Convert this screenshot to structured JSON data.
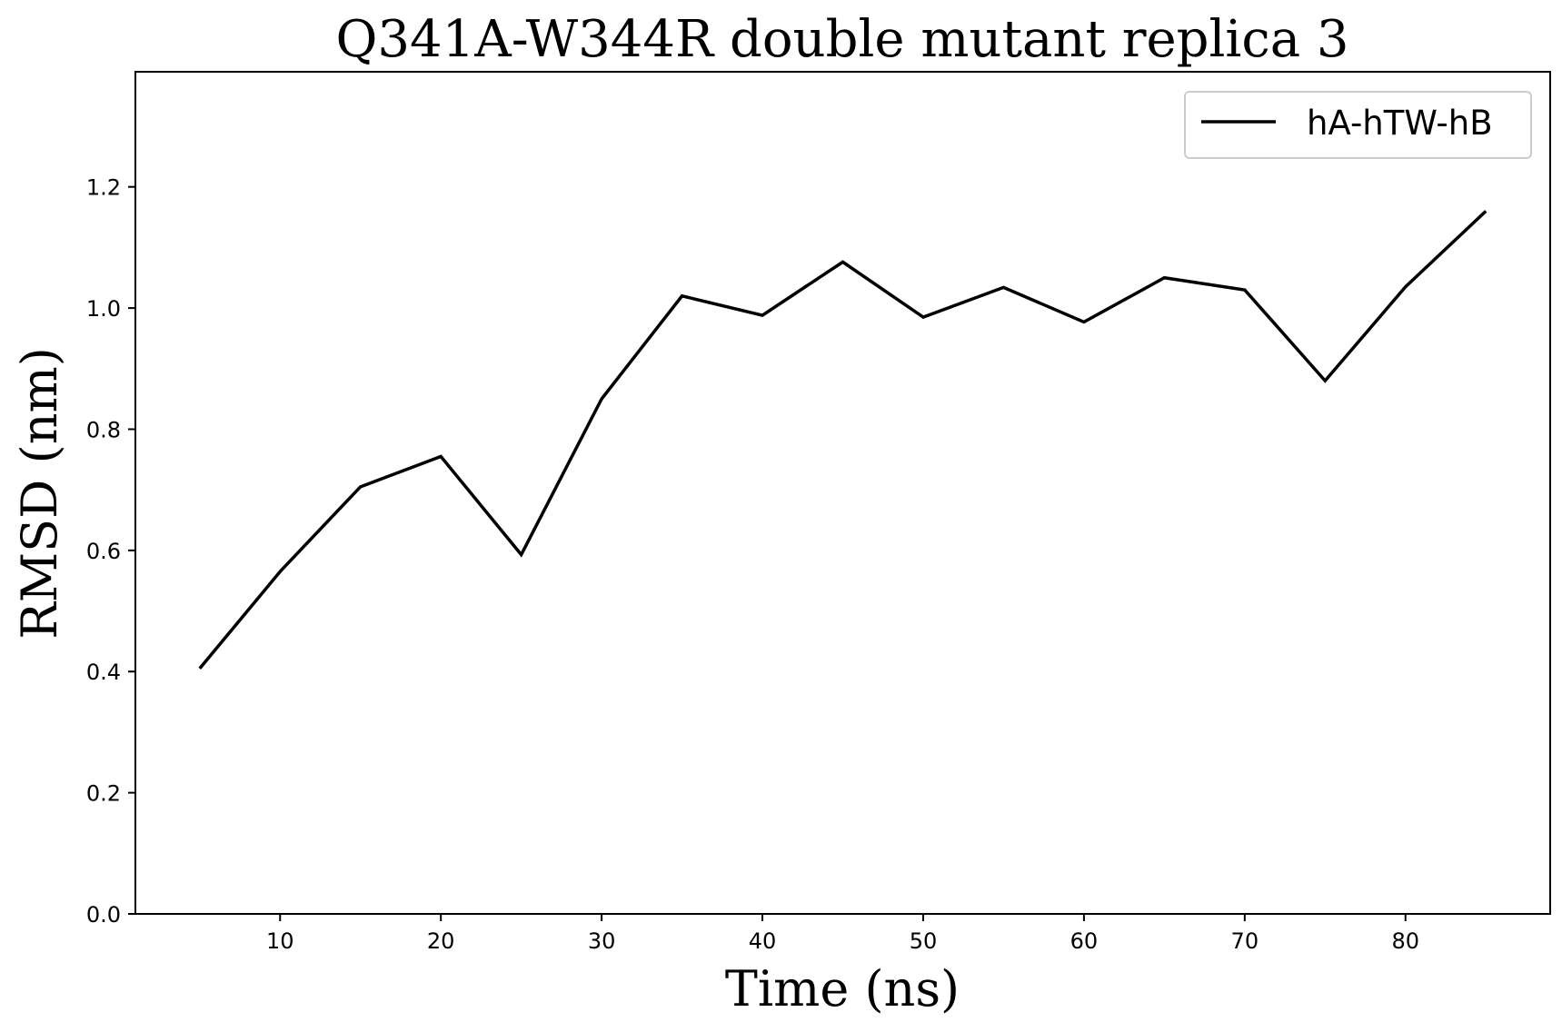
{
  "chart_data": {
    "type": "line",
    "title": "Q341A-W344R double mutant replica 3",
    "xlabel": "Time (ns)",
    "ylabel": "RMSD (nm)",
    "xlim": [
      1,
      89
    ],
    "ylim": [
      0.0,
      1.39
    ],
    "xticks": [
      10,
      20,
      30,
      40,
      50,
      60,
      70,
      80
    ],
    "yticks": [
      0.0,
      0.2,
      0.4,
      0.6,
      0.8,
      1.0,
      1.2
    ],
    "xtick_labels": [
      "10",
      "20",
      "30",
      "40",
      "50",
      "60",
      "70",
      "80"
    ],
    "ytick_labels": [
      "0.0",
      "0.2",
      "0.4",
      "0.6",
      "0.8",
      "1.0",
      "1.2"
    ],
    "grid": false,
    "legend_position": "top-right",
    "series": [
      {
        "name": "hA-hTW-hB",
        "color": "#000000",
        "x": [
          5,
          10,
          15,
          20,
          25,
          30,
          35,
          40,
          45,
          50,
          55,
          60,
          65,
          70,
          75,
          80,
          85
        ],
        "y": [
          0.405,
          0.565,
          0.705,
          0.755,
          0.593,
          0.85,
          1.02,
          0.988,
          1.076,
          0.985,
          1.034,
          0.977,
          1.05,
          1.03,
          0.88,
          1.035,
          1.16
        ]
      }
    ]
  }
}
